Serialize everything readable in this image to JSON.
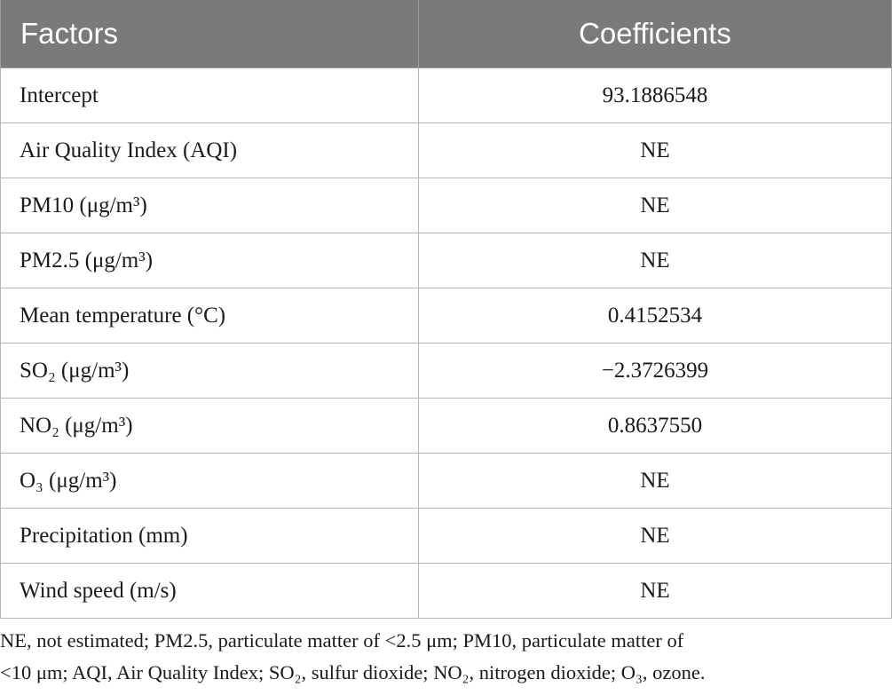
{
  "table": {
    "headers": [
      "Factors",
      "Coefficients"
    ],
    "rows": [
      {
        "factor": "Intercept",
        "coefficient": "93.1886548"
      },
      {
        "factor": "Air Quality Index (AQI)",
        "coefficient": "NE"
      },
      {
        "factor": "PM10 (μg/m³)",
        "coefficient": "NE"
      },
      {
        "factor": "PM2.5 (μg/m³)",
        "coefficient": "NE"
      },
      {
        "factor": "Mean temperature (°C)",
        "coefficient": "0.4152534"
      },
      {
        "factor": "SO₂ (μg/m³)",
        "coefficient": "−2.3726399"
      },
      {
        "factor": "NO₂ (μg/m³)",
        "coefficient": "0.8637550"
      },
      {
        "factor": "O₃ (μg/m³)",
        "coefficient": "NE"
      },
      {
        "factor": "Precipitation (mm)",
        "coefficient": "NE"
      },
      {
        "factor": "Wind speed (m/s)",
        "coefficient": "NE"
      }
    ]
  },
  "footnote": {
    "line1": "NE, not estimated; PM2.5, particulate matter of <2.5 μm; PM10, particulate matter of",
    "line2": "<10 μm; AQI, Air Quality Index; SO₂, sulfur dioxide; NO₂, nitrogen dioxide; O₃, ozone."
  }
}
